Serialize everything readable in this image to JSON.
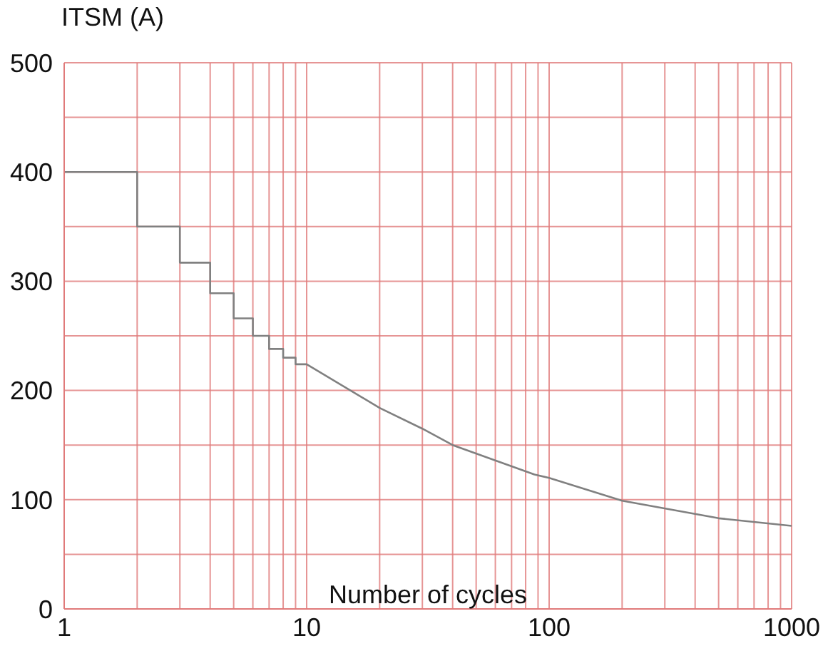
{
  "chart_data": {
    "type": "line",
    "ylabel": "ITSM (A)",
    "xlabel": "Number of cycles",
    "log": "x",
    "xlim": [
      1,
      1000
    ],
    "xticks": [
      1,
      {
        "value": 2,
        "label": null
      },
      {
        "value": 3,
        "label": null
      },
      {
        "value": 4,
        "label": null
      },
      {
        "value": 5,
        "label": null
      },
      {
        "value": 6,
        "label": null
      },
      {
        "value": 7,
        "label": null
      },
      {
        "value": 8,
        "label": null
      },
      {
        "value": 9,
        "label": null
      },
      10,
      {
        "value": 20,
        "label": null
      },
      {
        "value": 30,
        "label": null
      },
      {
        "value": 40,
        "label": null
      },
      {
        "value": 50,
        "label": null
      },
      {
        "value": 60,
        "label": null
      },
      {
        "value": 70,
        "label": null
      },
      {
        "value": 80,
        "label": null
      },
      {
        "value": 90,
        "label": null
      },
      100,
      {
        "value": 200,
        "label": null
      },
      {
        "value": 300,
        "label": null
      },
      {
        "value": 400,
        "label": null
      },
      {
        "value": 500,
        "label": null
      },
      {
        "value": 600,
        "label": null
      },
      {
        "value": 700,
        "label": null
      },
      {
        "value": 800,
        "label": null
      },
      {
        "value": 900,
        "label": null
      },
      1000
    ],
    "ylim": [
      0,
      500
    ],
    "yticks": [
      0,
      {
        "value": 50,
        "label": null
      },
      100,
      {
        "value": 150,
        "label": null
      },
      200,
      {
        "value": 250,
        "label": null
      },
      300,
      {
        "value": 350,
        "label": null
      },
      400,
      {
        "value": 450,
        "label": null
      },
      500
    ],
    "grid": true,
    "legend": false,
    "marker": "none",
    "line_style": "solid",
    "series": [
      {
        "color": "#808080",
        "x": [
          1,
          2,
          2,
          3,
          3,
          4,
          4,
          5,
          5,
          6,
          6,
          7,
          7,
          8,
          8,
          9,
          9,
          10,
          20,
          30,
          40,
          87,
          100,
          200,
          500,
          1000
        ],
        "values": [
          400,
          400,
          350,
          350,
          317,
          317,
          289,
          289,
          266,
          266,
          250,
          250,
          238,
          238,
          230,
          230,
          224,
          224,
          184,
          165,
          150,
          123,
          120,
          99,
          83,
          76
        ]
      }
    ]
  }
}
